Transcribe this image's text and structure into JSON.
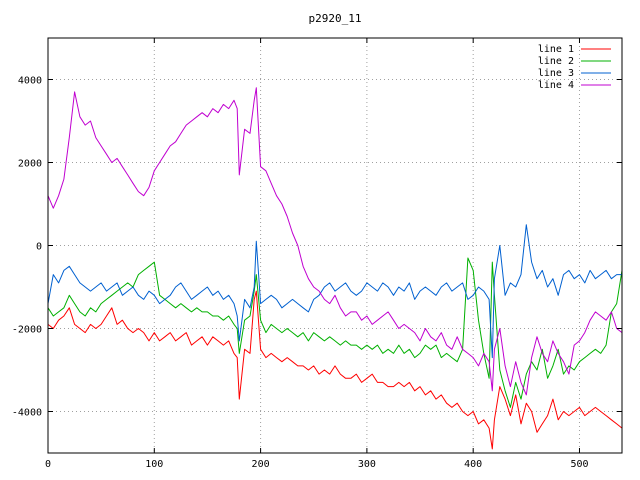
{
  "chart_data": {
    "type": "line",
    "title": "p2920_11",
    "xlabel": "",
    "ylabel": "",
    "xlim": [
      0,
      540
    ],
    "ylim": [
      -5000,
      5000
    ],
    "xticks": [
      0,
      100,
      200,
      300,
      400,
      500
    ],
    "yticks": [
      -4000,
      -2000,
      0,
      2000,
      4000
    ],
    "grid": true,
    "legend_position": "top-right",
    "series": [
      {
        "name": "line 1",
        "color": "#ff0000",
        "x": [
          0,
          5,
          10,
          15,
          20,
          25,
          30,
          35,
          40,
          45,
          50,
          55,
          60,
          65,
          70,
          75,
          80,
          85,
          90,
          95,
          100,
          105,
          110,
          115,
          120,
          125,
          130,
          135,
          140,
          145,
          150,
          155,
          160,
          165,
          170,
          175,
          178,
          180,
          185,
          190,
          194,
          196,
          200,
          205,
          210,
          215,
          220,
          225,
          230,
          235,
          240,
          245,
          250,
          255,
          260,
          265,
          270,
          275,
          280,
          285,
          290,
          295,
          300,
          305,
          310,
          315,
          320,
          325,
          330,
          335,
          340,
          345,
          350,
          355,
          360,
          365,
          370,
          375,
          380,
          385,
          390,
          395,
          400,
          405,
          410,
          415,
          418,
          420,
          425,
          430,
          435,
          440,
          445,
          450,
          455,
          460,
          465,
          470,
          475,
          480,
          485,
          490,
          495,
          500,
          505,
          510,
          515,
          520,
          525,
          530,
          535,
          540
        ],
        "values": [
          -1900,
          -2000,
          -1800,
          -1700,
          -1500,
          -1900,
          -2000,
          -2100,
          -1900,
          -2000,
          -1900,
          -1700,
          -1500,
          -1900,
          -1800,
          -2000,
          -2100,
          -2000,
          -2100,
          -2300,
          -2100,
          -2300,
          -2200,
          -2100,
          -2300,
          -2200,
          -2100,
          -2400,
          -2300,
          -2200,
          -2400,
          -2200,
          -2300,
          -2400,
          -2300,
          -2600,
          -2700,
          -3700,
          -2500,
          -2600,
          -1300,
          -1100,
          -2500,
          -2700,
          -2600,
          -2700,
          -2800,
          -2700,
          -2800,
          -2900,
          -2900,
          -3000,
          -2900,
          -3100,
          -3000,
          -3100,
          -2900,
          -3100,
          -3200,
          -3200,
          -3100,
          -3300,
          -3200,
          -3100,
          -3300,
          -3300,
          -3400,
          -3400,
          -3300,
          -3400,
          -3300,
          -3500,
          -3400,
          -3600,
          -3500,
          -3700,
          -3600,
          -3800,
          -3900,
          -3800,
          -4000,
          -4100,
          -4000,
          -4300,
          -4200,
          -4400,
          -4900,
          -4200,
          -3400,
          -3700,
          -4100,
          -3600,
          -4300,
          -3800,
          -4000,
          -4500,
          -4300,
          -4100,
          -3700,
          -4200,
          -4000,
          -4100,
          -4000,
          -3900,
          -4100,
          -4000,
          -3900,
          -4000,
          -4100,
          -4200,
          -4300,
          -4400
        ]
      },
      {
        "name": "line 2",
        "color": "#00b000",
        "x": [
          0,
          5,
          10,
          15,
          20,
          25,
          30,
          35,
          40,
          45,
          50,
          55,
          60,
          65,
          70,
          75,
          80,
          85,
          90,
          95,
          100,
          105,
          110,
          115,
          120,
          125,
          130,
          135,
          140,
          145,
          150,
          155,
          160,
          165,
          170,
          175,
          178,
          180,
          185,
          190,
          194,
          196,
          200,
          205,
          210,
          215,
          220,
          225,
          230,
          235,
          240,
          245,
          250,
          255,
          260,
          265,
          270,
          275,
          280,
          285,
          290,
          295,
          300,
          305,
          310,
          315,
          320,
          325,
          330,
          335,
          340,
          345,
          350,
          355,
          360,
          365,
          370,
          375,
          380,
          385,
          390,
          395,
          400,
          405,
          410,
          415,
          418,
          420,
          425,
          430,
          435,
          440,
          445,
          450,
          455,
          460,
          465,
          470,
          475,
          480,
          485,
          490,
          495,
          500,
          505,
          510,
          515,
          520,
          525,
          530,
          535,
          540
        ],
        "values": [
          -1500,
          -1700,
          -1600,
          -1500,
          -1200,
          -1400,
          -1600,
          -1700,
          -1500,
          -1600,
          -1400,
          -1300,
          -1200,
          -1100,
          -1000,
          -900,
          -1000,
          -700,
          -600,
          -500,
          -400,
          -1200,
          -1300,
          -1400,
          -1500,
          -1400,
          -1500,
          -1600,
          -1500,
          -1600,
          -1600,
          -1700,
          -1700,
          -1800,
          -1700,
          -1900,
          -2000,
          -2600,
          -1800,
          -1700,
          -1100,
          -700,
          -1800,
          -2100,
          -1900,
          -2000,
          -2100,
          -2000,
          -2100,
          -2200,
          -2100,
          -2300,
          -2100,
          -2200,
          -2300,
          -2200,
          -2300,
          -2400,
          -2300,
          -2400,
          -2400,
          -2500,
          -2400,
          -2500,
          -2400,
          -2600,
          -2500,
          -2600,
          -2400,
          -2600,
          -2500,
          -2700,
          -2600,
          -2400,
          -2500,
          -2400,
          -2700,
          -2600,
          -2700,
          -2800,
          -2500,
          -300,
          -600,
          -1800,
          -2600,
          -3200,
          -400,
          -1200,
          -3000,
          -3500,
          -3900,
          -3300,
          -3700,
          -3100,
          -2800,
          -3000,
          -2500,
          -3200,
          -2900,
          -2500,
          -3100,
          -2900,
          -3000,
          -2800,
          -2700,
          -2600,
          -2500,
          -2600,
          -2400,
          -1600,
          -1400,
          -600
        ]
      },
      {
        "name": "line 3",
        "color": "#0060d0",
        "x": [
          0,
          5,
          10,
          15,
          20,
          25,
          30,
          35,
          40,
          45,
          50,
          55,
          60,
          65,
          70,
          75,
          80,
          85,
          90,
          95,
          100,
          105,
          110,
          115,
          120,
          125,
          130,
          135,
          140,
          145,
          150,
          155,
          160,
          165,
          170,
          175,
          178,
          180,
          185,
          190,
          194,
          196,
          200,
          205,
          210,
          215,
          220,
          225,
          230,
          235,
          240,
          245,
          250,
          255,
          260,
          265,
          270,
          275,
          280,
          285,
          290,
          295,
          300,
          305,
          310,
          315,
          320,
          325,
          330,
          335,
          340,
          345,
          350,
          355,
          360,
          365,
          370,
          375,
          380,
          385,
          390,
          395,
          400,
          405,
          410,
          415,
          418,
          420,
          425,
          430,
          435,
          440,
          445,
          450,
          455,
          460,
          465,
          470,
          475,
          480,
          485,
          490,
          495,
          500,
          505,
          510,
          515,
          520,
          525,
          530,
          535,
          540
        ],
        "values": [
          -1400,
          -700,
          -900,
          -600,
          -500,
          -700,
          -900,
          -1000,
          -1100,
          -1000,
          -900,
          -1100,
          -1000,
          -900,
          -1200,
          -1100,
          -1000,
          -1200,
          -1300,
          -1100,
          -1200,
          -1400,
          -1300,
          -1200,
          -1000,
          -900,
          -1100,
          -1300,
          -1200,
          -1100,
          -1000,
          -1200,
          -1100,
          -1300,
          -1200,
          -1400,
          -1700,
          -2300,
          -1300,
          -1500,
          -1000,
          100,
          -1400,
          -1300,
          -1200,
          -1300,
          -1500,
          -1400,
          -1300,
          -1400,
          -1500,
          -1600,
          -1300,
          -1200,
          -1000,
          -900,
          -1100,
          -1000,
          -900,
          -1100,
          -1200,
          -1100,
          -900,
          -1000,
          -1100,
          -900,
          -1000,
          -1200,
          -1000,
          -1100,
          -900,
          -1300,
          -1100,
          -1000,
          -1100,
          -1200,
          -1000,
          -900,
          -1100,
          -1000,
          -900,
          -1300,
          -1200,
          -1000,
          -1100,
          -1300,
          -2700,
          -800,
          0,
          -1200,
          -900,
          -1000,
          -700,
          500,
          -400,
          -800,
          -600,
          -1000,
          -800,
          -1200,
          -700,
          -600,
          -800,
          -700,
          -900,
          -600,
          -800,
          -700,
          -600,
          -800,
          -700,
          -700
        ]
      },
      {
        "name": "line 4",
        "color": "#c000d0",
        "x": [
          0,
          5,
          10,
          15,
          20,
          25,
          30,
          35,
          40,
          45,
          50,
          55,
          60,
          65,
          70,
          75,
          80,
          85,
          90,
          95,
          100,
          105,
          110,
          115,
          120,
          125,
          130,
          135,
          140,
          145,
          150,
          155,
          160,
          165,
          170,
          175,
          178,
          180,
          185,
          190,
          194,
          196,
          200,
          205,
          210,
          215,
          220,
          225,
          230,
          235,
          240,
          245,
          250,
          255,
          260,
          265,
          270,
          275,
          280,
          285,
          290,
          295,
          300,
          305,
          310,
          315,
          320,
          325,
          330,
          335,
          340,
          345,
          350,
          355,
          360,
          365,
          370,
          375,
          380,
          385,
          390,
          395,
          400,
          405,
          410,
          415,
          418,
          420,
          425,
          430,
          435,
          440,
          445,
          450,
          455,
          460,
          465,
          470,
          475,
          480,
          485,
          490,
          495,
          500,
          505,
          510,
          515,
          520,
          525,
          530,
          535,
          540
        ],
        "values": [
          1200,
          900,
          1200,
          1600,
          2600,
          3700,
          3100,
          2900,
          3000,
          2600,
          2400,
          2200,
          2000,
          2100,
          1900,
          1700,
          1500,
          1300,
          1200,
          1400,
          1800,
          2000,
          2200,
          2400,
          2500,
          2700,
          2900,
          3000,
          3100,
          3200,
          3100,
          3300,
          3200,
          3400,
          3300,
          3500,
          3300,
          1700,
          2800,
          2700,
          3500,
          3800,
          1900,
          1800,
          1500,
          1200,
          1000,
          700,
          300,
          0,
          -500,
          -800,
          -1000,
          -1100,
          -1300,
          -1400,
          -1200,
          -1500,
          -1700,
          -1600,
          -1600,
          -1800,
          -1700,
          -1900,
          -1800,
          -1700,
          -1600,
          -1800,
          -2000,
          -1900,
          -2000,
          -2100,
          -2300,
          -2000,
          -2200,
          -2300,
          -2100,
          -2400,
          -2500,
          -2200,
          -2500,
          -2600,
          -2700,
          -2900,
          -2600,
          -2800,
          -3500,
          -2500,
          -2000,
          -2900,
          -3400,
          -2800,
          -3300,
          -3600,
          -2700,
          -2200,
          -2600,
          -2800,
          -2300,
          -2600,
          -2800,
          -3100,
          -2400,
          -2300,
          -2100,
          -1800,
          -1600,
          -1700,
          -1800,
          -1600,
          -2000,
          -2100
        ]
      }
    ]
  }
}
